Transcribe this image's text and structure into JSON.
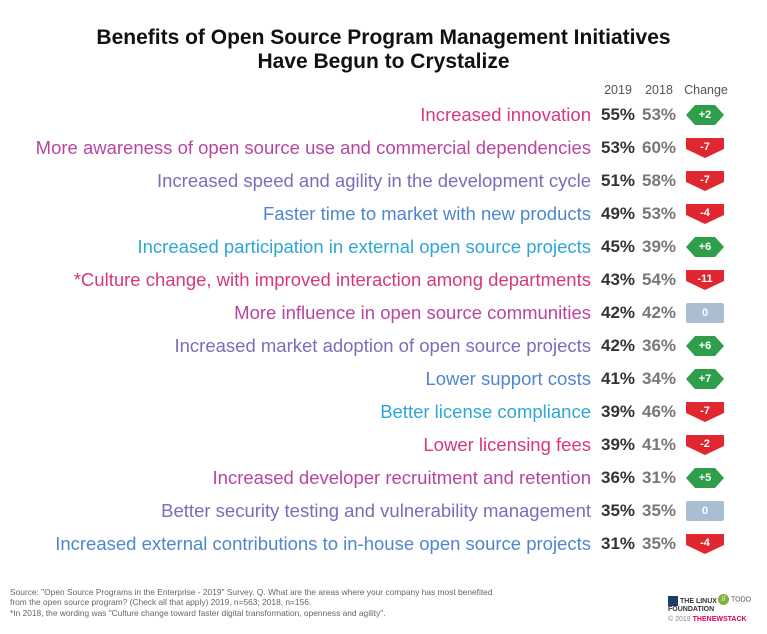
{
  "chart_data": {
    "type": "table",
    "title": "Benefits of Open Source Program Management Initiatives Have Begun to Crystalize",
    "title_lines": [
      "Benefits of Open Source Program Management Initiatives",
      "Have Begun to Crystalize"
    ],
    "columns": [
      "2019",
      "2018",
      "Change"
    ],
    "rows": [
      {
        "label": "Increased innovation",
        "v2019": "55%",
        "v2018": "53%",
        "change": "+2",
        "change_value": 2,
        "color": "#d6387e"
      },
      {
        "label": "More awareness of open source use and commercial dependencies",
        "v2019": "53%",
        "v2018": "60%",
        "change": "-7",
        "change_value": -7,
        "color": "#b945a0"
      },
      {
        "label": "Increased speed and agility in the development cycle",
        "v2019": "51%",
        "v2018": "58%",
        "change": "-7",
        "change_value": -7,
        "color": "#7e6bbb"
      },
      {
        "label": "Faster time to market with new products",
        "v2019": "49%",
        "v2018": "53%",
        "change": "-4",
        "change_value": -4,
        "color": "#4f86cf"
      },
      {
        "label": "Increased participation in external open source projects",
        "v2019": "45%",
        "v2018": "39%",
        "change": "+6",
        "change_value": 6,
        "color": "#2ea6d8"
      },
      {
        "label": "*Culture change, with improved interaction among departments",
        "v2019": "43%",
        "v2018": "54%",
        "change": "-11",
        "change_value": -11,
        "color": "#d6387e"
      },
      {
        "label": "More influence in open source communities",
        "v2019": "42%",
        "v2018": "42%",
        "change": "0",
        "change_value": 0,
        "color": "#b945a0"
      },
      {
        "label": "Increased market adoption of open source projects",
        "v2019": "42%",
        "v2018": "36%",
        "change": "+6",
        "change_value": 6,
        "color": "#7e6bbb"
      },
      {
        "label": "Lower support costs",
        "v2019": "41%",
        "v2018": "34%",
        "change": "+7",
        "change_value": 7,
        "color": "#4f86cf"
      },
      {
        "label": "Better license compliance",
        "v2019": "39%",
        "v2018": "46%",
        "change": "-7",
        "change_value": -7,
        "color": "#2ea6d8"
      },
      {
        "label": "Lower licensing fees",
        "v2019": "39%",
        "v2018": "41%",
        "change": "-2",
        "change_value": -2,
        "color": "#d6387e"
      },
      {
        "label": "Increased developer recruitment and retention",
        "v2019": "36%",
        "v2018": "31%",
        "change": "+5",
        "change_value": 5,
        "color": "#b945a0"
      },
      {
        "label": "Better security testing and vulnerability management",
        "v2019": "35%",
        "v2018": "35%",
        "change": "0",
        "change_value": 0,
        "color": "#7e6bbb"
      },
      {
        "label": "Increased external contributions to in-house open source projects",
        "v2019": "31%",
        "v2018": "35%",
        "change": "-4",
        "change_value": -4,
        "color": "#4f86cf"
      }
    ]
  },
  "colors": {
    "positive": "#2e9e4a",
    "negative": "#e0262f",
    "neutral": "#a9bdd3"
  },
  "footer": {
    "line1": "Source: \"Open Source Programs in the Enterprise - 2019\" Survey. Q. What are the areas where your company has most benefited",
    "line2": "from the open source program? (Check all that apply) 2019, n=563; 2018, n=156.",
    "line3": "*In 2018, the wording was \"Culture change toward faster digital transformation, openness and agility\"."
  },
  "logos": {
    "linux_foundation": "THE LINUX FOUNDATION",
    "todo": "TODO",
    "copyright": "© 2019",
    "publisher": "THENEWSTACK"
  }
}
